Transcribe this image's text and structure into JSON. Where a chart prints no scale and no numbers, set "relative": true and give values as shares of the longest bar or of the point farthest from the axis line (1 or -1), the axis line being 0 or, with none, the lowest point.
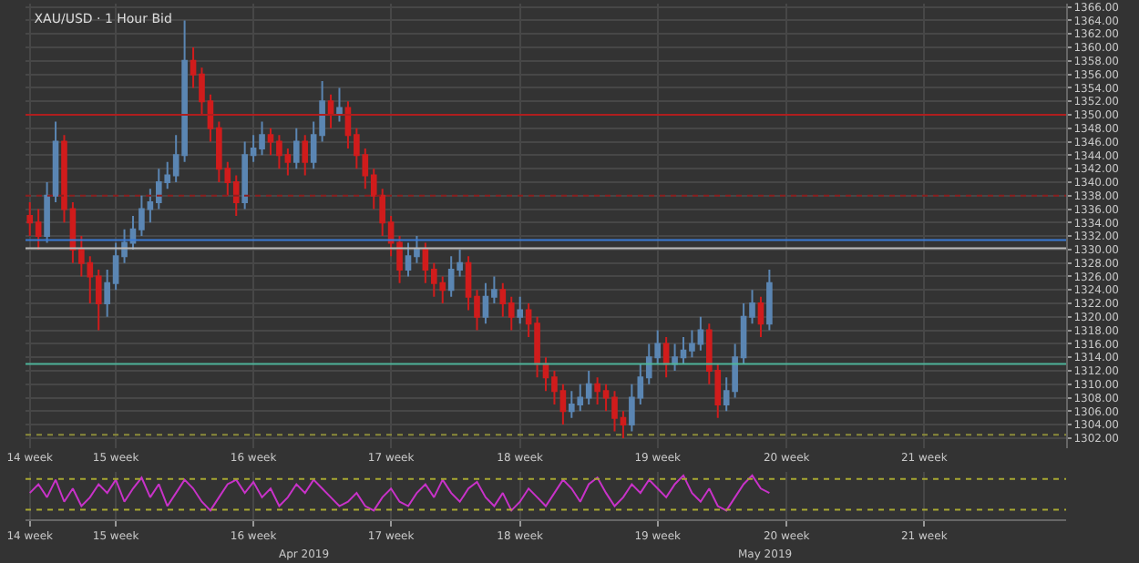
{
  "chart_data": [
    {
      "type": "candlestick",
      "title": "XAU/USD · 1 Hour Bid",
      "categories": [
        "14 week",
        null,
        null,
        null,
        null,
        null,
        null,
        null,
        null,
        null,
        "15 week",
        null,
        null,
        null,
        null,
        null,
        null,
        null,
        null,
        null,
        null,
        null,
        null,
        null,
        null,
        null,
        "16 week",
        null,
        null,
        null,
        null,
        null,
        null,
        null,
        null,
        null,
        null,
        null,
        null,
        null,
        null,
        null,
        "17 week",
        null,
        null,
        null,
        null,
        null,
        null,
        null,
        null,
        null,
        null,
        null,
        null,
        null,
        null,
        "18 week",
        null,
        null,
        null,
        null,
        null,
        null,
        null,
        null,
        null,
        null,
        null,
        null,
        null,
        null,
        null,
        "19 week",
        null,
        null,
        null,
        null,
        null,
        null,
        null,
        null,
        null,
        null,
        null,
        null,
        null,
        null,
        "20 week",
        null,
        null,
        null,
        null,
        null,
        null,
        null,
        null,
        null,
        null,
        null,
        null,
        null,
        null,
        null,
        "21 week",
        null,
        null,
        null,
        null,
        null,
        null,
        null,
        null,
        null,
        null,
        null,
        null,
        null,
        null,
        null,
        null
      ],
      "ohlc": [
        [
          1335,
          1337,
          1332,
          1334
        ],
        [
          1334,
          1336,
          1330,
          1332
        ],
        [
          1332,
          1340,
          1331,
          1338
        ],
        [
          1338,
          1349,
          1337,
          1346
        ],
        [
          1346,
          1347,
          1334,
          1336
        ],
        [
          1336,
          1337,
          1328,
          1330
        ],
        [
          1330,
          1332,
          1326,
          1328
        ],
        [
          1328,
          1329,
          1322,
          1326
        ],
        [
          1326,
          1327,
          1318,
          1322
        ],
        [
          1322,
          1327,
          1320,
          1325
        ],
        [
          1325,
          1331,
          1324,
          1329
        ],
        [
          1329,
          1333,
          1328,
          1331
        ],
        [
          1331,
          1335,
          1330,
          1333
        ],
        [
          1333,
          1338,
          1332,
          1336
        ],
        [
          1336,
          1339,
          1334,
          1337
        ],
        [
          1337,
          1342,
          1336,
          1340
        ],
        [
          1340,
          1343,
          1339,
          1341
        ],
        [
          1341,
          1347,
          1340,
          1344
        ],
        [
          1344,
          1364,
          1343,
          1358
        ],
        [
          1358,
          1360,
          1354,
          1356
        ],
        [
          1356,
          1357,
          1350,
          1352
        ],
        [
          1352,
          1353,
          1346,
          1348
        ],
        [
          1348,
          1349,
          1340,
          1342
        ],
        [
          1342,
          1343,
          1338,
          1340
        ],
        [
          1340,
          1341,
          1335,
          1337
        ],
        [
          1337,
          1346,
          1336,
          1344
        ],
        [
          1344,
          1347,
          1343,
          1345
        ],
        [
          1345,
          1349,
          1344,
          1347
        ],
        [
          1347,
          1348,
          1344,
          1346
        ],
        [
          1346,
          1347,
          1342,
          1344
        ],
        [
          1344,
          1345,
          1341,
          1343
        ],
        [
          1343,
          1348,
          1342,
          1346
        ],
        [
          1346,
          1347,
          1341,
          1343
        ],
        [
          1343,
          1349,
          1342,
          1347
        ],
        [
          1347,
          1355,
          1346,
          1352
        ],
        [
          1352,
          1353,
          1348,
          1350
        ],
        [
          1350,
          1354,
          1349,
          1351
        ],
        [
          1351,
          1352,
          1345,
          1347
        ],
        [
          1347,
          1348,
          1342,
          1344
        ],
        [
          1344,
          1345,
          1339,
          1341
        ],
        [
          1341,
          1342,
          1336,
          1338
        ],
        [
          1338,
          1339,
          1332,
          1334
        ],
        [
          1334,
          1335,
          1329,
          1331
        ],
        [
          1331,
          1332,
          1325,
          1327
        ],
        [
          1327,
          1331,
          1326,
          1329
        ],
        [
          1329,
          1332,
          1328,
          1330
        ],
        [
          1330,
          1331,
          1325,
          1327
        ],
        [
          1327,
          1328,
          1323,
          1325
        ],
        [
          1325,
          1326,
          1322,
          1324
        ],
        [
          1324,
          1329,
          1323,
          1327
        ],
        [
          1327,
          1330,
          1326,
          1328
        ],
        [
          1328,
          1329,
          1321,
          1323
        ],
        [
          1323,
          1324,
          1318,
          1320
        ],
        [
          1320,
          1325,
          1319,
          1323
        ],
        [
          1323,
          1326,
          1322,
          1324
        ],
        [
          1324,
          1325,
          1320,
          1322
        ],
        [
          1322,
          1323,
          1318,
          1320
        ],
        [
          1320,
          1323,
          1319,
          1321
        ],
        [
          1321,
          1322,
          1317,
          1319
        ],
        [
          1319,
          1320,
          1311,
          1313
        ],
        [
          1313,
          1314,
          1309,
          1311
        ],
        [
          1311,
          1312,
          1307,
          1309
        ],
        [
          1309,
          1310,
          1304,
          1306
        ],
        [
          1306,
          1309,
          1305,
          1307
        ],
        [
          1307,
          1310,
          1306,
          1308
        ],
        [
          1308,
          1312,
          1307,
          1310
        ],
        [
          1310,
          1311,
          1307,
          1309
        ],
        [
          1309,
          1310,
          1306,
          1308
        ],
        [
          1308,
          1309,
          1303,
          1305
        ],
        [
          1305,
          1306,
          1302,
          1304
        ],
        [
          1304,
          1310,
          1303,
          1308
        ],
        [
          1308,
          1313,
          1307,
          1311
        ],
        [
          1311,
          1316,
          1310,
          1314
        ],
        [
          1314,
          1318,
          1313,
          1316
        ],
        [
          1316,
          1317,
          1311,
          1313
        ],
        [
          1313,
          1316,
          1312,
          1314
        ],
        [
          1314,
          1317,
          1313,
          1315
        ],
        [
          1315,
          1318,
          1314,
          1316
        ],
        [
          1316,
          1320,
          1315,
          1318
        ],
        [
          1318,
          1319,
          1310,
          1312
        ],
        [
          1312,
          1313,
          1305,
          1307
        ],
        [
          1307,
          1311,
          1306,
          1309
        ],
        [
          1309,
          1316,
          1308,
          1314
        ],
        [
          1314,
          1322,
          1313,
          1320
        ],
        [
          1320,
          1324,
          1319,
          1322
        ],
        [
          1322,
          1323,
          1317,
          1319
        ],
        [
          1319,
          1327,
          1318,
          1325
        ],
        null,
        null,
        null,
        null,
        null,
        null,
        null,
        null,
        null,
        null,
        null,
        null,
        null,
        null,
        null,
        null,
        null,
        null,
        null,
        null,
        null,
        null,
        null,
        null,
        null,
        null,
        null,
        null,
        null,
        null,
        null,
        null,
        null,
        null
      ],
      "ylim": [
        1300.5,
        1366.5
      ],
      "yticks": [
        {
          "value": 1302,
          "label": "1302.00"
        },
        {
          "value": 1304,
          "label": "1304.00"
        },
        {
          "value": 1306,
          "label": "1306.00"
        },
        {
          "value": 1308,
          "label": "1308.00"
        },
        {
          "value": 1310,
          "label": "1310.00"
        },
        {
          "value": 1312,
          "label": "1312.00"
        },
        {
          "value": 1314,
          "label": "1314.00"
        },
        {
          "value": 1316,
          "label": "1316.00"
        },
        {
          "value": 1318,
          "label": "1318.00"
        },
        {
          "value": 1320,
          "label": "1320.00"
        },
        {
          "value": 1322,
          "label": "1322.00"
        },
        {
          "value": 1324,
          "label": "1324.00"
        },
        {
          "value": 1326,
          "label": "1326.00"
        },
        {
          "value": 1328,
          "label": "1328.00"
        },
        {
          "value": 1330,
          "label": "1330.00"
        },
        {
          "value": 1332,
          "label": "1332.00"
        },
        {
          "value": 1334,
          "label": "1334.00"
        },
        {
          "value": 1336,
          "label": "1336.00"
        },
        {
          "value": 1338,
          "label": "1338.00"
        },
        {
          "value": 1340,
          "label": "1340.00"
        },
        {
          "value": 1342,
          "label": "1342.00"
        },
        {
          "value": 1344,
          "label": "1344.00"
        },
        {
          "value": 1346,
          "label": "1346.00"
        },
        {
          "value": 1348,
          "label": "1348.00"
        },
        {
          "value": 1350,
          "label": "1350.00"
        },
        {
          "value": 1352,
          "label": "1352.00"
        },
        {
          "value": 1354,
          "label": "1354.00"
        },
        {
          "value": 1356,
          "label": "1356.00"
        },
        {
          "value": 1358,
          "label": "1358.00"
        },
        {
          "value": 1360,
          "label": "1360.00"
        },
        {
          "value": 1362,
          "label": "1362.00"
        },
        {
          "value": 1364,
          "label": "1364.00"
        },
        {
          "value": 1366,
          "label": "1366.00"
        }
      ],
      "grid": true,
      "ref_lines": [
        {
          "axis": "y",
          "value": 1350,
          "color": "#b01e1e",
          "line_style": "solid"
        },
        {
          "axis": "y",
          "value": 1338,
          "color": "#8a1e1e",
          "line_style": "dotted"
        },
        {
          "axis": "y",
          "value": 1331.4,
          "color": "#3a7bd5",
          "line_style": "solid"
        },
        {
          "axis": "y",
          "value": 1330.2,
          "color": "#bbbbbb",
          "line_style": "solid"
        },
        {
          "axis": "y",
          "value": 1313,
          "color": "#4fb39a",
          "line_style": "solid"
        },
        {
          "axis": "y",
          "value": 1302.5,
          "color": "#8a8a3a",
          "line_style": "dotted"
        }
      ]
    },
    {
      "type": "line",
      "relative": true,
      "categories": [
        "14 week",
        null,
        null,
        null,
        null,
        null,
        null,
        null,
        null,
        null,
        "15 week",
        null,
        null,
        null,
        null,
        null,
        null,
        null,
        null,
        null,
        null,
        null,
        null,
        null,
        null,
        null,
        "16 week",
        null,
        null,
        null,
        null,
        null,
        null,
        null,
        null,
        null,
        null,
        null,
        null,
        null,
        null,
        null,
        "17 week",
        null,
        null,
        null,
        null,
        null,
        null,
        null,
        null,
        null,
        null,
        null,
        null,
        null,
        null,
        "18 week",
        null,
        null,
        null,
        null,
        null,
        null,
        null,
        null,
        null,
        null,
        null,
        null,
        null,
        null,
        null,
        "19 week",
        null,
        null,
        null,
        null,
        null,
        null,
        null,
        null,
        null,
        null,
        null,
        null,
        null,
        null,
        "20 week",
        null,
        null,
        null,
        null,
        null,
        null,
        null,
        null,
        null,
        null,
        null,
        null,
        null,
        null,
        null,
        "21 week",
        null,
        null,
        null,
        null,
        null,
        null,
        null,
        null,
        null,
        null,
        null,
        null,
        null,
        null,
        null,
        null
      ],
      "series": [
        {
          "color": "#c832c8",
          "values": [
            0.6,
            0.8,
            0.5,
            0.9,
            0.4,
            0.7,
            0.3,
            0.5,
            0.8,
            0.6,
            0.9,
            0.4,
            0.7,
            0.95,
            0.5,
            0.8,
            0.3,
            0.6,
            0.9,
            0.7,
            0.4,
            0.2,
            0.5,
            0.8,
            0.9,
            0.6,
            0.85,
            0.5,
            0.7,
            0.3,
            0.5,
            0.8,
            0.6,
            0.9,
            0.7,
            0.5,
            0.3,
            0.4,
            0.6,
            0.3,
            0.2,
            0.5,
            0.7,
            0.4,
            0.3,
            0.6,
            0.8,
            0.5,
            0.9,
            0.6,
            0.4,
            0.7,
            0.85,
            0.5,
            0.3,
            0.6,
            0.2,
            0.4,
            0.7,
            0.5,
            0.3,
            0.6,
            0.9,
            0.7,
            0.4,
            0.8,
            0.95,
            0.6,
            0.3,
            0.5,
            0.8,
            0.6,
            0.9,
            0.7,
            0.5,
            0.8,
            1,
            0.6,
            0.4,
            0.7,
            0.3,
            0.2,
            0.5,
            0.8,
            1,
            0.7,
            0.6,
            null,
            null,
            null,
            null,
            null,
            null,
            null,
            null,
            null,
            null,
            null,
            null,
            null,
            null,
            null,
            null,
            null,
            null,
            null,
            null,
            null,
            null,
            null,
            null,
            null,
            null,
            null,
            null,
            null,
            null,
            null,
            null,
            null,
            null
          ]
        }
      ],
      "ref_lines": [
        {
          "axis": "y",
          "value": 0.92,
          "color": "#a8a832",
          "line_style": "dotted"
        },
        {
          "axis": "y",
          "value": 0.22,
          "color": "#a8a832",
          "line_style": "dotted"
        }
      ],
      "annotations": [
        "Apr 2019",
        "May 2019"
      ],
      "grid": "x",
      "marker": "none",
      "line_style": "solid"
    }
  ]
}
